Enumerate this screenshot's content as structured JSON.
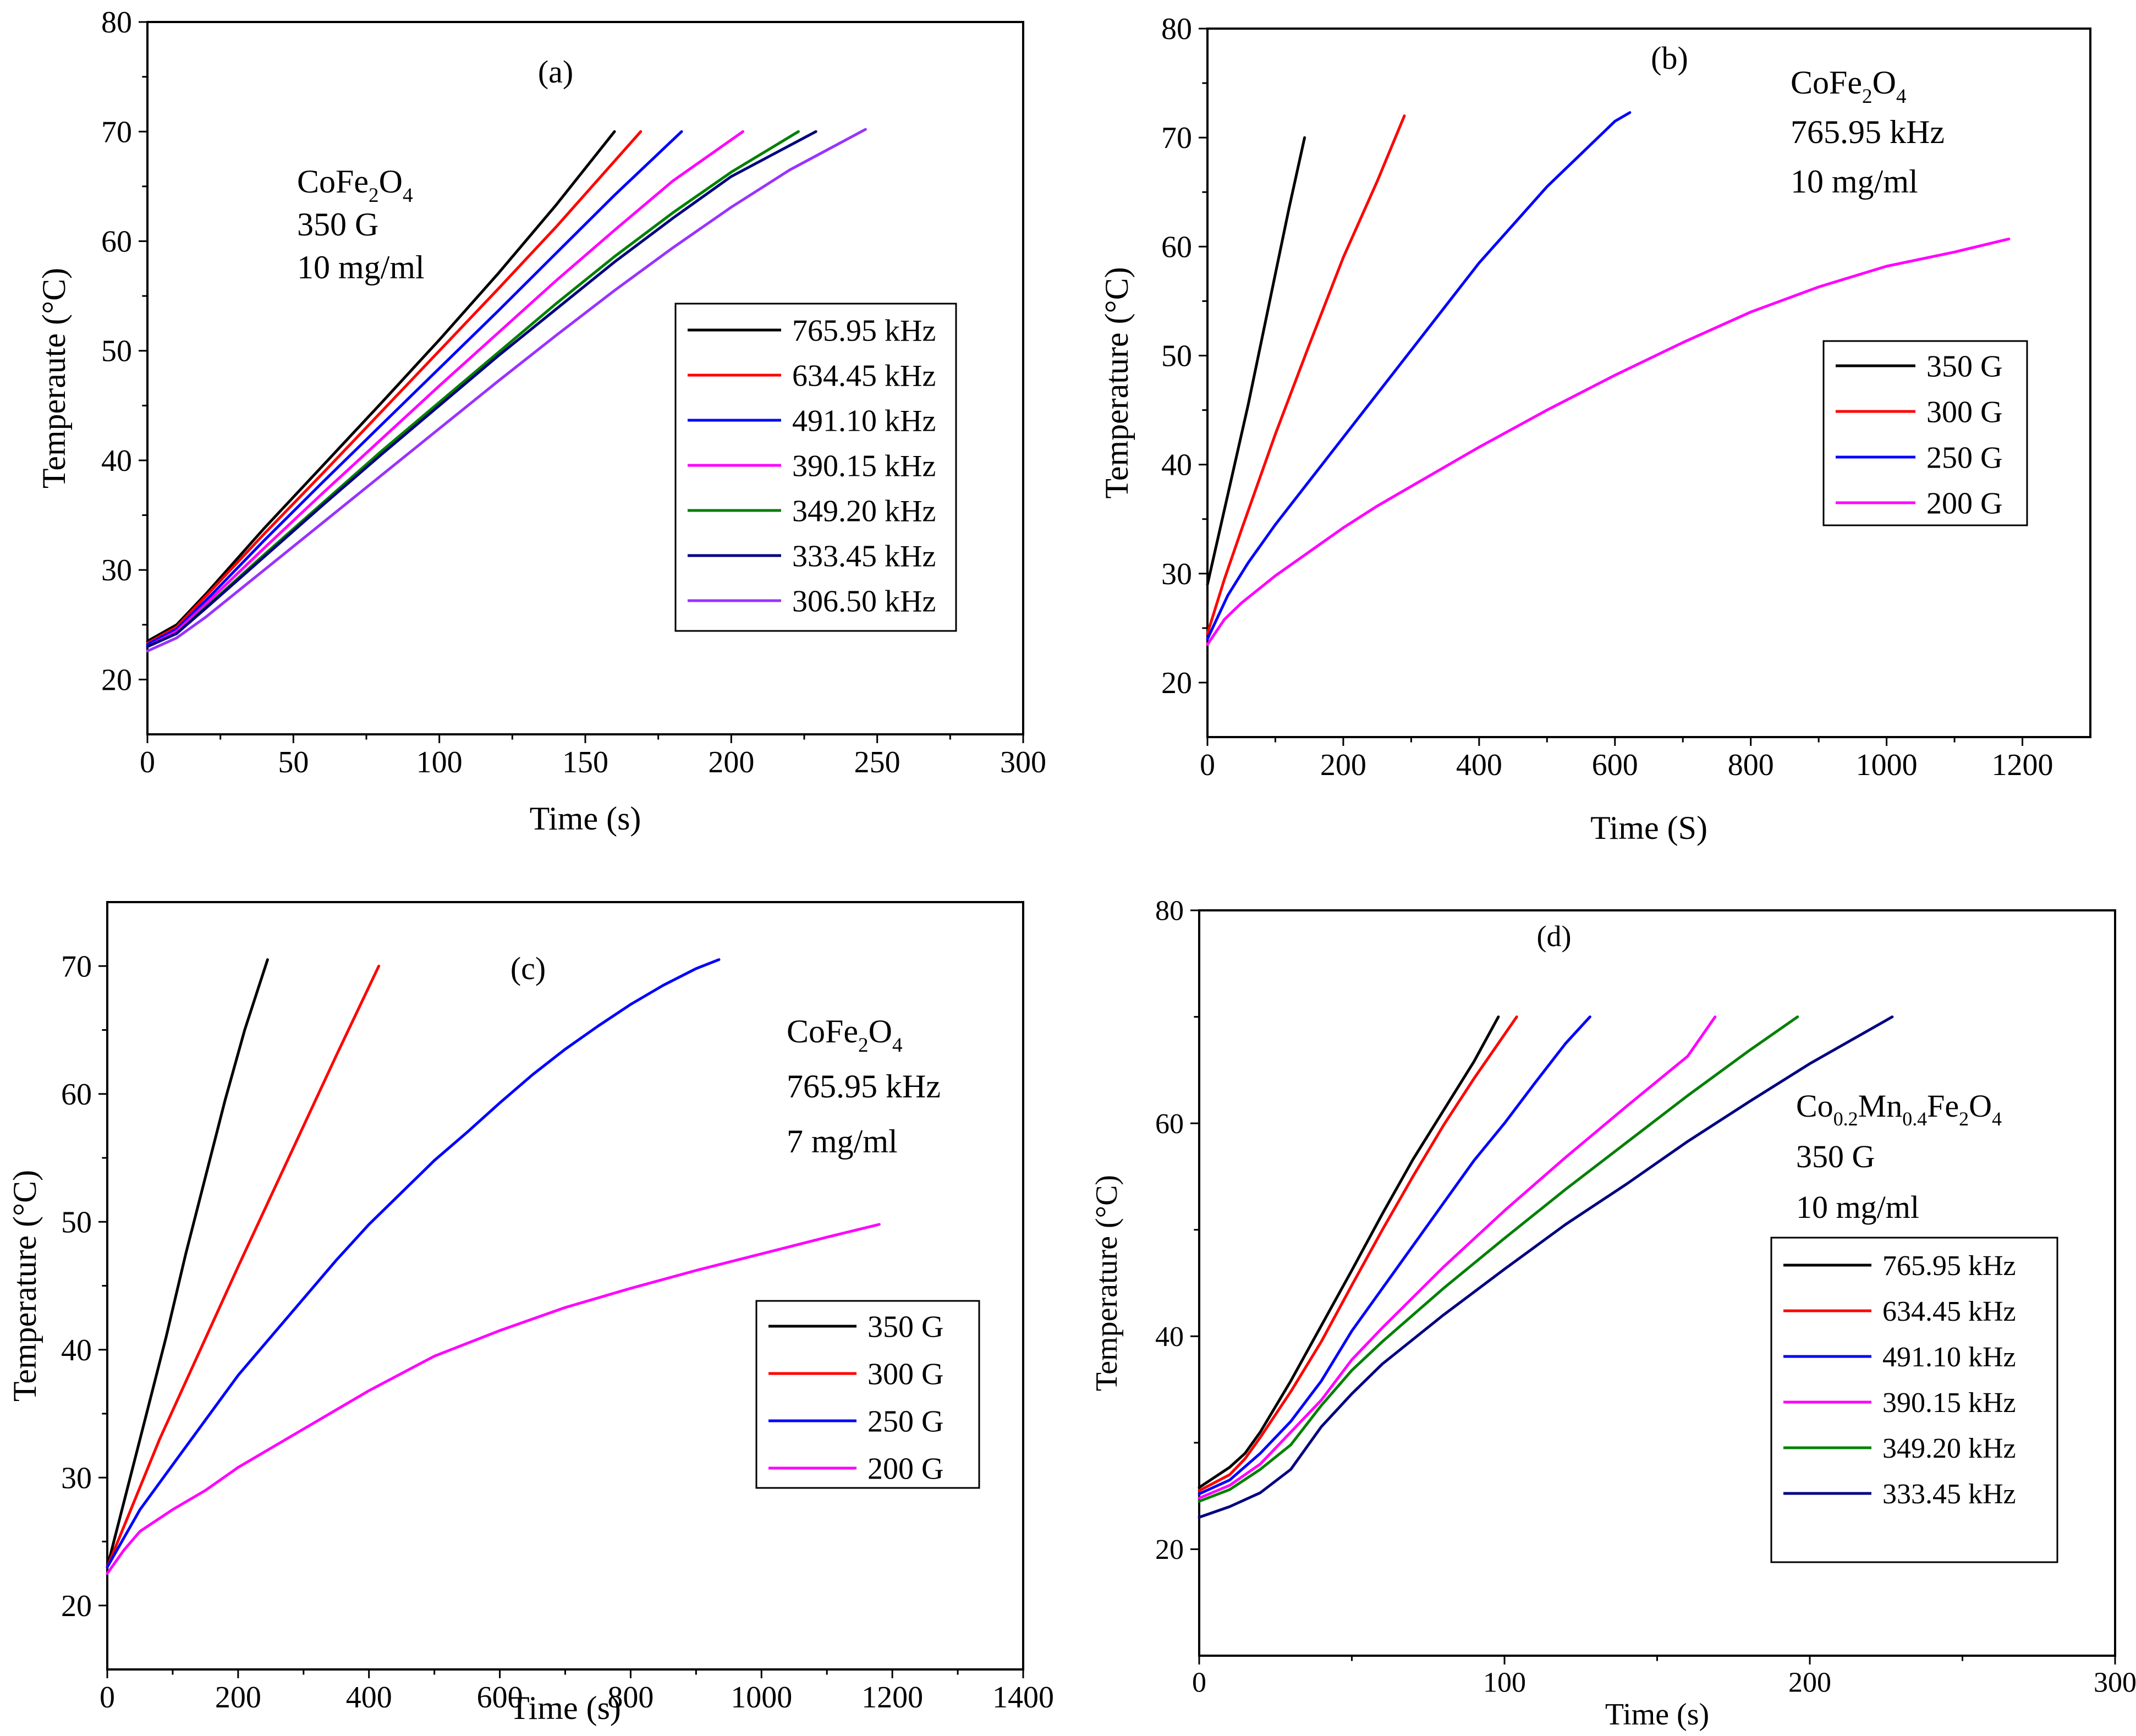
{
  "chart_data": [
    {
      "id": "a",
      "type": "line",
      "panel_label": "(a)",
      "xlabel": "Time (s)",
      "ylabel": "Temperaute (°C)",
      "xlim": [
        0,
        300
      ],
      "ylim": [
        15,
        80
      ],
      "xticks": [
        0,
        50,
        100,
        150,
        200,
        250,
        300
      ],
      "yticks": [
        20,
        30,
        40,
        50,
        60,
        70,
        80
      ],
      "annotation": {
        "material_base": "CoFe",
        "sub1": "2",
        "mid": "O",
        "sub2": "4",
        "line2": "350 G",
        "line3": "10 mg/ml"
      },
      "series": [
        {
          "name": "765.95 kHz",
          "color": "#000000",
          "x": [
            0,
            10,
            20,
            40,
            60,
            80,
            100,
            120,
            140,
            160
          ],
          "y": [
            23.5,
            25.0,
            27.8,
            33.8,
            39.5,
            45.2,
            51.0,
            57.0,
            63.3,
            70.0
          ]
        },
        {
          "name": "634.45 kHz",
          "color": "#ff0000",
          "x": [
            0,
            10,
            20,
            40,
            60,
            80,
            100,
            120,
            140,
            169
          ],
          "y": [
            23.3,
            24.8,
            27.6,
            33.3,
            38.8,
            44.4,
            50.0,
            55.6,
            61.3,
            70.0
          ]
        },
        {
          "name": "491.10 kHz",
          "color": "#0000ff",
          "x": [
            0,
            10,
            20,
            40,
            60,
            80,
            100,
            120,
            140,
            160,
            183
          ],
          "y": [
            23.2,
            24.6,
            27.2,
            32.7,
            38.0,
            43.2,
            48.4,
            53.6,
            58.9,
            64.2,
            70.0
          ]
        },
        {
          "name": "390.15 kHz",
          "color": "#ff00ff",
          "x": [
            0,
            10,
            20,
            40,
            60,
            80,
            100,
            120,
            140,
            160,
            180,
            204
          ],
          "y": [
            23.0,
            24.4,
            26.9,
            32.0,
            37.0,
            41.9,
            46.8,
            51.6,
            56.4,
            61.0,
            65.5,
            70.0
          ]
        },
        {
          "name": "349.20 kHz",
          "color": "#008000",
          "x": [
            0,
            10,
            20,
            40,
            60,
            80,
            100,
            120,
            140,
            160,
            180,
            200,
            223
          ],
          "y": [
            23.0,
            24.2,
            26.6,
            31.4,
            36.1,
            40.8,
            45.3,
            49.8,
            54.3,
            58.6,
            62.6,
            66.3,
            70.0
          ]
        },
        {
          "name": "333.45 kHz",
          "color": "#000080",
          "x": [
            0,
            10,
            20,
            40,
            60,
            80,
            100,
            120,
            140,
            160,
            180,
            200,
            229
          ],
          "y": [
            23.0,
            24.2,
            26.5,
            31.2,
            35.9,
            40.5,
            45.0,
            49.5,
            53.8,
            58.1,
            62.1,
            65.9,
            70.0
          ]
        },
        {
          "name": "306.50 kHz",
          "color": "#9933ff",
          "x": [
            0,
            10,
            20,
            40,
            60,
            80,
            100,
            120,
            140,
            160,
            180,
            200,
            220,
            246
          ],
          "y": [
            22.6,
            23.8,
            25.7,
            30.0,
            34.3,
            38.6,
            42.9,
            47.2,
            51.4,
            55.5,
            59.4,
            63.1,
            66.5,
            70.2
          ]
        }
      ]
    },
    {
      "id": "b",
      "type": "line",
      "panel_label": "(b)",
      "xlabel": "Time (S)",
      "ylabel": "Temperature (°C)",
      "xlim": [
        0,
        1300
      ],
      "ylim": [
        15,
        80
      ],
      "xticks": [
        0,
        200,
        400,
        600,
        800,
        1000,
        1200
      ],
      "yticks": [
        20,
        30,
        40,
        50,
        60,
        70,
        80
      ],
      "annotation": {
        "material_base": "CoFe",
        "sub1": "2",
        "mid": "O",
        "sub2": "4",
        "line2": "765.95 kHz",
        "line3": "10 mg/ml"
      },
      "series": [
        {
          "name": "350 G",
          "color": "#000000",
          "x": [
            0,
            20,
            40,
            60,
            80,
            100,
            120,
            143
          ],
          "y": [
            29.0,
            34.5,
            40.0,
            45.5,
            51.5,
            57.5,
            63.5,
            70.0
          ]
        },
        {
          "name": "300 G",
          "color": "#ff0000",
          "x": [
            0,
            25,
            50,
            100,
            150,
            200,
            250,
            290
          ],
          "y": [
            24.5,
            29.5,
            34.0,
            42.8,
            51.0,
            59.0,
            66.0,
            72.0
          ]
        },
        {
          "name": "250 G",
          "color": "#0000ff",
          "x": [
            0,
            30,
            60,
            100,
            150,
            200,
            250,
            300,
            350,
            400,
            450,
            500,
            550,
            600,
            622
          ],
          "y": [
            24.0,
            28.0,
            31.0,
            34.5,
            38.5,
            42.5,
            46.5,
            50.5,
            54.5,
            58.5,
            62.0,
            65.5,
            68.5,
            71.5,
            72.3
          ]
        },
        {
          "name": "200 G",
          "color": "#ff00ff",
          "x": [
            0,
            25,
            50,
            100,
            150,
            200,
            250,
            300,
            400,
            500,
            600,
            700,
            800,
            900,
            1000,
            1100,
            1180
          ],
          "y": [
            23.5,
            25.8,
            27.3,
            29.8,
            32.0,
            34.2,
            36.2,
            38.0,
            41.6,
            45.0,
            48.2,
            51.2,
            54.0,
            56.3,
            58.2,
            59.5,
            60.7
          ]
        }
      ]
    },
    {
      "id": "c",
      "type": "line",
      "panel_label": "(c)",
      "xlabel": "Time (s)",
      "ylabel": "Temperature (°C)",
      "xlim": [
        0,
        1400
      ],
      "ylim": [
        15,
        75
      ],
      "xticks": [
        0,
        200,
        400,
        600,
        800,
        1000,
        1200,
        1400
      ],
      "yticks": [
        20,
        30,
        40,
        50,
        60,
        70
      ],
      "annotation": {
        "material_base": "CoFe",
        "sub1": "2",
        "mid": "O",
        "sub2": "4",
        "line2": "765.95 kHz",
        "line3": "7 mg/ml"
      },
      "series": [
        {
          "name": "350 G",
          "color": "#000000",
          "x": [
            0,
            30,
            60,
            90,
            120,
            150,
            180,
            210,
            245
          ],
          "y": [
            23.0,
            29.0,
            35.0,
            41.0,
            47.5,
            53.5,
            59.5,
            65.0,
            70.5
          ]
        },
        {
          "name": "300 G",
          "color": "#ff0000",
          "x": [
            0,
            40,
            80,
            120,
            160,
            200,
            250,
            300,
            350,
            415
          ],
          "y": [
            23.0,
            28.0,
            33.0,
            37.5,
            42.0,
            46.5,
            52.0,
            57.5,
            63.0,
            70.0
          ]
        },
        {
          "name": "250 G",
          "color": "#0000ff",
          "x": [
            0,
            50,
            100,
            150,
            200,
            250,
            300,
            350,
            400,
            450,
            500,
            550,
            600,
            650,
            700,
            750,
            800,
            850,
            900,
            935
          ],
          "y": [
            23.0,
            27.5,
            31.0,
            34.5,
            38.0,
            41.0,
            44.0,
            47.0,
            49.8,
            52.3,
            54.8,
            57.0,
            59.3,
            61.5,
            63.5,
            65.3,
            67.0,
            68.5,
            69.8,
            70.5
          ]
        },
        {
          "name": "200 G",
          "color": "#ff00ff",
          "x": [
            0,
            25,
            50,
            100,
            150,
            200,
            300,
            400,
            500,
            600,
            700,
            800,
            900,
            1000,
            1100,
            1180
          ],
          "y": [
            22.5,
            24.3,
            25.8,
            27.5,
            29.0,
            30.8,
            33.8,
            36.8,
            39.5,
            41.5,
            43.3,
            44.8,
            46.2,
            47.5,
            48.8,
            49.8
          ]
        }
      ]
    },
    {
      "id": "d",
      "type": "line",
      "panel_label": "(d)",
      "xlabel": "Time (s)",
      "ylabel": "Temperature (°C)",
      "xlim": [
        0,
        300
      ],
      "ylim": [
        10,
        80
      ],
      "xticks": [
        0,
        100,
        200,
        300
      ],
      "yticks": [
        20,
        40,
        60,
        80
      ],
      "annotation": {
        "material_base": "Co",
        "sub1": "0.2",
        "mid": "Mn",
        "sub2": "0.4",
        "mid2": "Fe",
        "sub3": "2",
        "mid3": "O",
        "sub4": "4",
        "line2": "350 G",
        "line3": "10 mg/ml"
      },
      "series": [
        {
          "name": "765.95 kHz",
          "color": "#000000",
          "x": [
            0,
            10,
            15,
            20,
            30,
            40,
            50,
            60,
            70,
            80,
            90,
            98
          ],
          "y": [
            25.8,
            27.7,
            29.0,
            31.0,
            35.8,
            41.0,
            46.2,
            51.5,
            56.6,
            61.2,
            65.8,
            70.0
          ]
        },
        {
          "name": "634.45 kHz",
          "color": "#ff0000",
          "x": [
            0,
            10,
            15,
            20,
            30,
            40,
            50,
            60,
            70,
            80,
            90,
            104
          ],
          "y": [
            25.5,
            27.0,
            28.5,
            30.5,
            34.8,
            39.5,
            44.8,
            50.0,
            55.0,
            59.8,
            64.2,
            70.0
          ]
        },
        {
          "name": "491.10 kHz",
          "color": "#0000ff",
          "x": [
            0,
            10,
            20,
            30,
            40,
            50,
            60,
            70,
            80,
            90,
            100,
            110,
            120,
            128
          ],
          "y": [
            25.2,
            26.5,
            29.0,
            32.0,
            35.8,
            40.5,
            44.5,
            48.5,
            52.5,
            56.5,
            60.0,
            63.8,
            67.5,
            70.0
          ]
        },
        {
          "name": "390.15 kHz",
          "color": "#ff00ff",
          "x": [
            0,
            10,
            20,
            30,
            40,
            50,
            60,
            80,
            100,
            120,
            140,
            160,
            169
          ],
          "y": [
            24.8,
            26.0,
            28.0,
            31.0,
            34.0,
            37.8,
            40.8,
            46.5,
            51.8,
            56.8,
            61.6,
            66.3,
            70.0
          ]
        },
        {
          "name": "349.20 kHz",
          "color": "#008000",
          "x": [
            0,
            10,
            20,
            30,
            40,
            50,
            60,
            80,
            100,
            120,
            140,
            160,
            180,
            196
          ],
          "y": [
            24.5,
            25.6,
            27.5,
            29.8,
            33.5,
            36.8,
            39.5,
            44.5,
            49.2,
            53.8,
            58.2,
            62.6,
            66.8,
            70.0
          ]
        },
        {
          "name": "333.45 kHz",
          "color": "#000080",
          "x": [
            0,
            10,
            20,
            30,
            40,
            50,
            60,
            80,
            100,
            120,
            140,
            160,
            180,
            200,
            227
          ],
          "y": [
            23.0,
            24.0,
            25.3,
            27.5,
            31.5,
            34.6,
            37.4,
            42.0,
            46.3,
            50.5,
            54.3,
            58.3,
            62.0,
            65.6,
            70.0
          ]
        }
      ]
    }
  ]
}
